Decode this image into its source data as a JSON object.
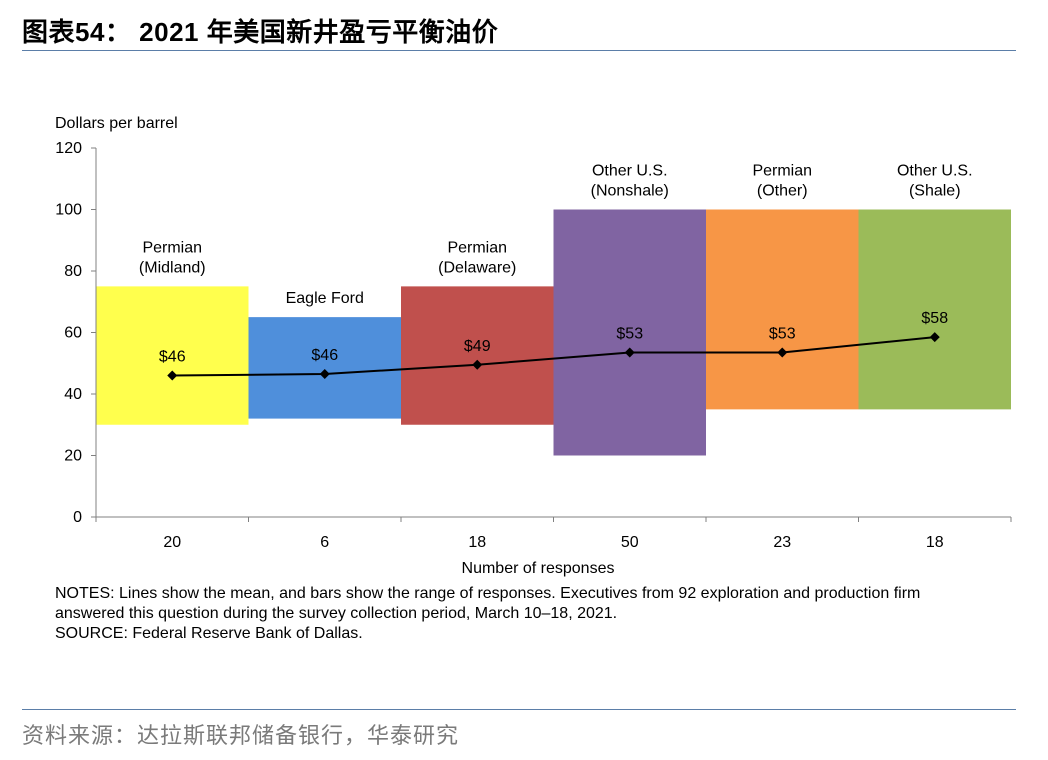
{
  "header": {
    "title": "图表54： 2021 年美国新井盈亏平衡油价"
  },
  "chart_data": {
    "type": "bar",
    "subtype": "floating-range-with-mean-line",
    "ylabel": "Dollars per barrel",
    "xlabel": "Number of responses",
    "ylim": [
      0,
      120
    ],
    "yticks": [
      "0",
      "20",
      "40",
      "60",
      "80",
      "100",
      "120"
    ],
    "categories": [
      {
        "name": [
          "Permian",
          "(Midland)"
        ],
        "responses": "20",
        "low": 30,
        "high": 75,
        "mean": 46,
        "mean_label": "$46",
        "color": "#ffff4d"
      },
      {
        "name": [
          "Eagle Ford"
        ],
        "responses": "6",
        "low": 32,
        "high": 65,
        "mean": 46.5,
        "mean_label": "$46",
        "color": "#4f8fdb"
      },
      {
        "name": [
          "Permian",
          "(Delaware)"
        ],
        "responses": "18",
        "low": 30,
        "high": 75,
        "mean": 49.5,
        "mean_label": "$49",
        "color": "#c0504d"
      },
      {
        "name": [
          "Other U.S.",
          "(Nonshale)"
        ],
        "responses": "50",
        "low": 20,
        "high": 100,
        "mean": 53.5,
        "mean_label": "$53",
        "color": "#8064a2"
      },
      {
        "name": [
          "Permian",
          "(Other)"
        ],
        "responses": "23",
        "low": 35,
        "high": 100,
        "mean": 53.5,
        "mean_label": "$53",
        "color": "#f79646"
      },
      {
        "name": [
          "Other U.S.",
          "(Shale)"
        ],
        "responses": "18",
        "low": 35,
        "high": 100,
        "mean": 58.5,
        "mean_label": "$58",
        "color": "#9bbb59"
      }
    ]
  },
  "notes": {
    "line1": "NOTES: Lines show the mean, and bars show the range of responses. Executives from 92 exploration and production firm",
    "line2": "answered this question during the survey collection period, March 10–18, 2021.",
    "line3": "SOURCE: Federal Reserve Bank of Dallas."
  },
  "footer": {
    "source": "资料来源：达拉斯联邦储备银行，华泰研究"
  }
}
